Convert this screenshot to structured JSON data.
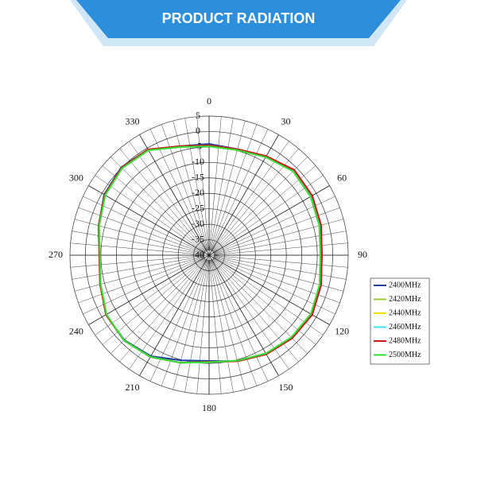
{
  "header": {
    "title": "PRODUCT RADIATION"
  },
  "chart_data": {
    "type": "polar",
    "x": [
      0,
      15,
      30,
      45,
      60,
      75,
      90,
      105,
      120,
      135,
      150,
      165,
      180,
      195,
      210,
      225,
      240,
      255,
      270,
      285,
      300,
      315,
      330,
      345
    ],
    "xlim": [
      0,
      360
    ],
    "xticks": [
      0,
      30,
      60,
      90,
      120,
      150,
      180,
      210,
      240,
      270,
      300,
      330
    ],
    "ylim": [
      -40,
      5
    ],
    "yticks": [
      5,
      0,
      -5,
      -10,
      -15,
      -20,
      -25,
      -30,
      -35,
      -40
    ],
    "grid": true,
    "series": [
      {
        "name": "2400MHz",
        "color": "#1f3c9e",
        "values": [
          -4,
          -4.5,
          -3,
          -1,
          -1.5,
          -2.5,
          -3.5,
          -2.5,
          -1.5,
          -2,
          -3,
          -4.5,
          -5.8,
          -4.8,
          -2.3,
          -1.2,
          -1.5,
          -3.5,
          -4.5,
          -3,
          -0.8,
          0.2,
          -0.5,
          -3.5
        ]
      },
      {
        "name": "2420MHz",
        "color": "#9acd32",
        "values": [
          -4.5,
          -4.5,
          -3,
          -1.2,
          -1.7,
          -2.7,
          -3.6,
          -2.6,
          -1.6,
          -2,
          -3,
          -4.5,
          -5.5,
          -4,
          -2,
          -1,
          -1.5,
          -3.5,
          -4.5,
          -3,
          -1,
          0,
          -0.5,
          -3.5
        ]
      },
      {
        "name": "2440MHz",
        "color": "#f2e200",
        "values": [
          -4.6,
          -4.6,
          -3.1,
          -1.3,
          -1.8,
          -2.8,
          -3.7,
          -2.7,
          -1.7,
          -2.1,
          -3.1,
          -4.6,
          -5.5,
          -4,
          -2,
          -1,
          -1.6,
          -3.6,
          -4.6,
          -3.1,
          -1.1,
          -0.1,
          -0.6,
          -3.6
        ]
      },
      {
        "name": "2460MHz",
        "color": "#40e0f0",
        "values": [
          -4.7,
          -4.7,
          -3.2,
          -1.4,
          -1.9,
          -2.9,
          -3.8,
          -2.8,
          -1.8,
          -2.2,
          -3.2,
          -4.6,
          -5.4,
          -4,
          -2,
          -1,
          -1.6,
          -3.6,
          -4.6,
          -3.1,
          -1.1,
          -0.1,
          -0.7,
          -3.7
        ]
      },
      {
        "name": "2480MHz",
        "color": "#d01818",
        "values": [
          -4.5,
          -4.5,
          -3,
          -1,
          -1.5,
          -2.5,
          -3.5,
          -2.5,
          -1.5,
          -2,
          -3,
          -4.5,
          -5.5,
          -4,
          -2,
          -1,
          -1.5,
          -3.5,
          -4.5,
          -3,
          -1,
          0,
          -0.5,
          -3.5
        ]
      },
      {
        "name": "2500MHz",
        "color": "#34e034",
        "values": [
          -4.8,
          -4.8,
          -3.4,
          -1.6,
          -2.1,
          -3.1,
          -4,
          -3,
          -2,
          -2.4,
          -3.3,
          -4.7,
          -5.4,
          -4,
          -2,
          -1,
          -1.7,
          -3.7,
          -4.7,
          -3.2,
          -1.2,
          -0.2,
          -0.8,
          -3.8
        ]
      }
    ]
  }
}
